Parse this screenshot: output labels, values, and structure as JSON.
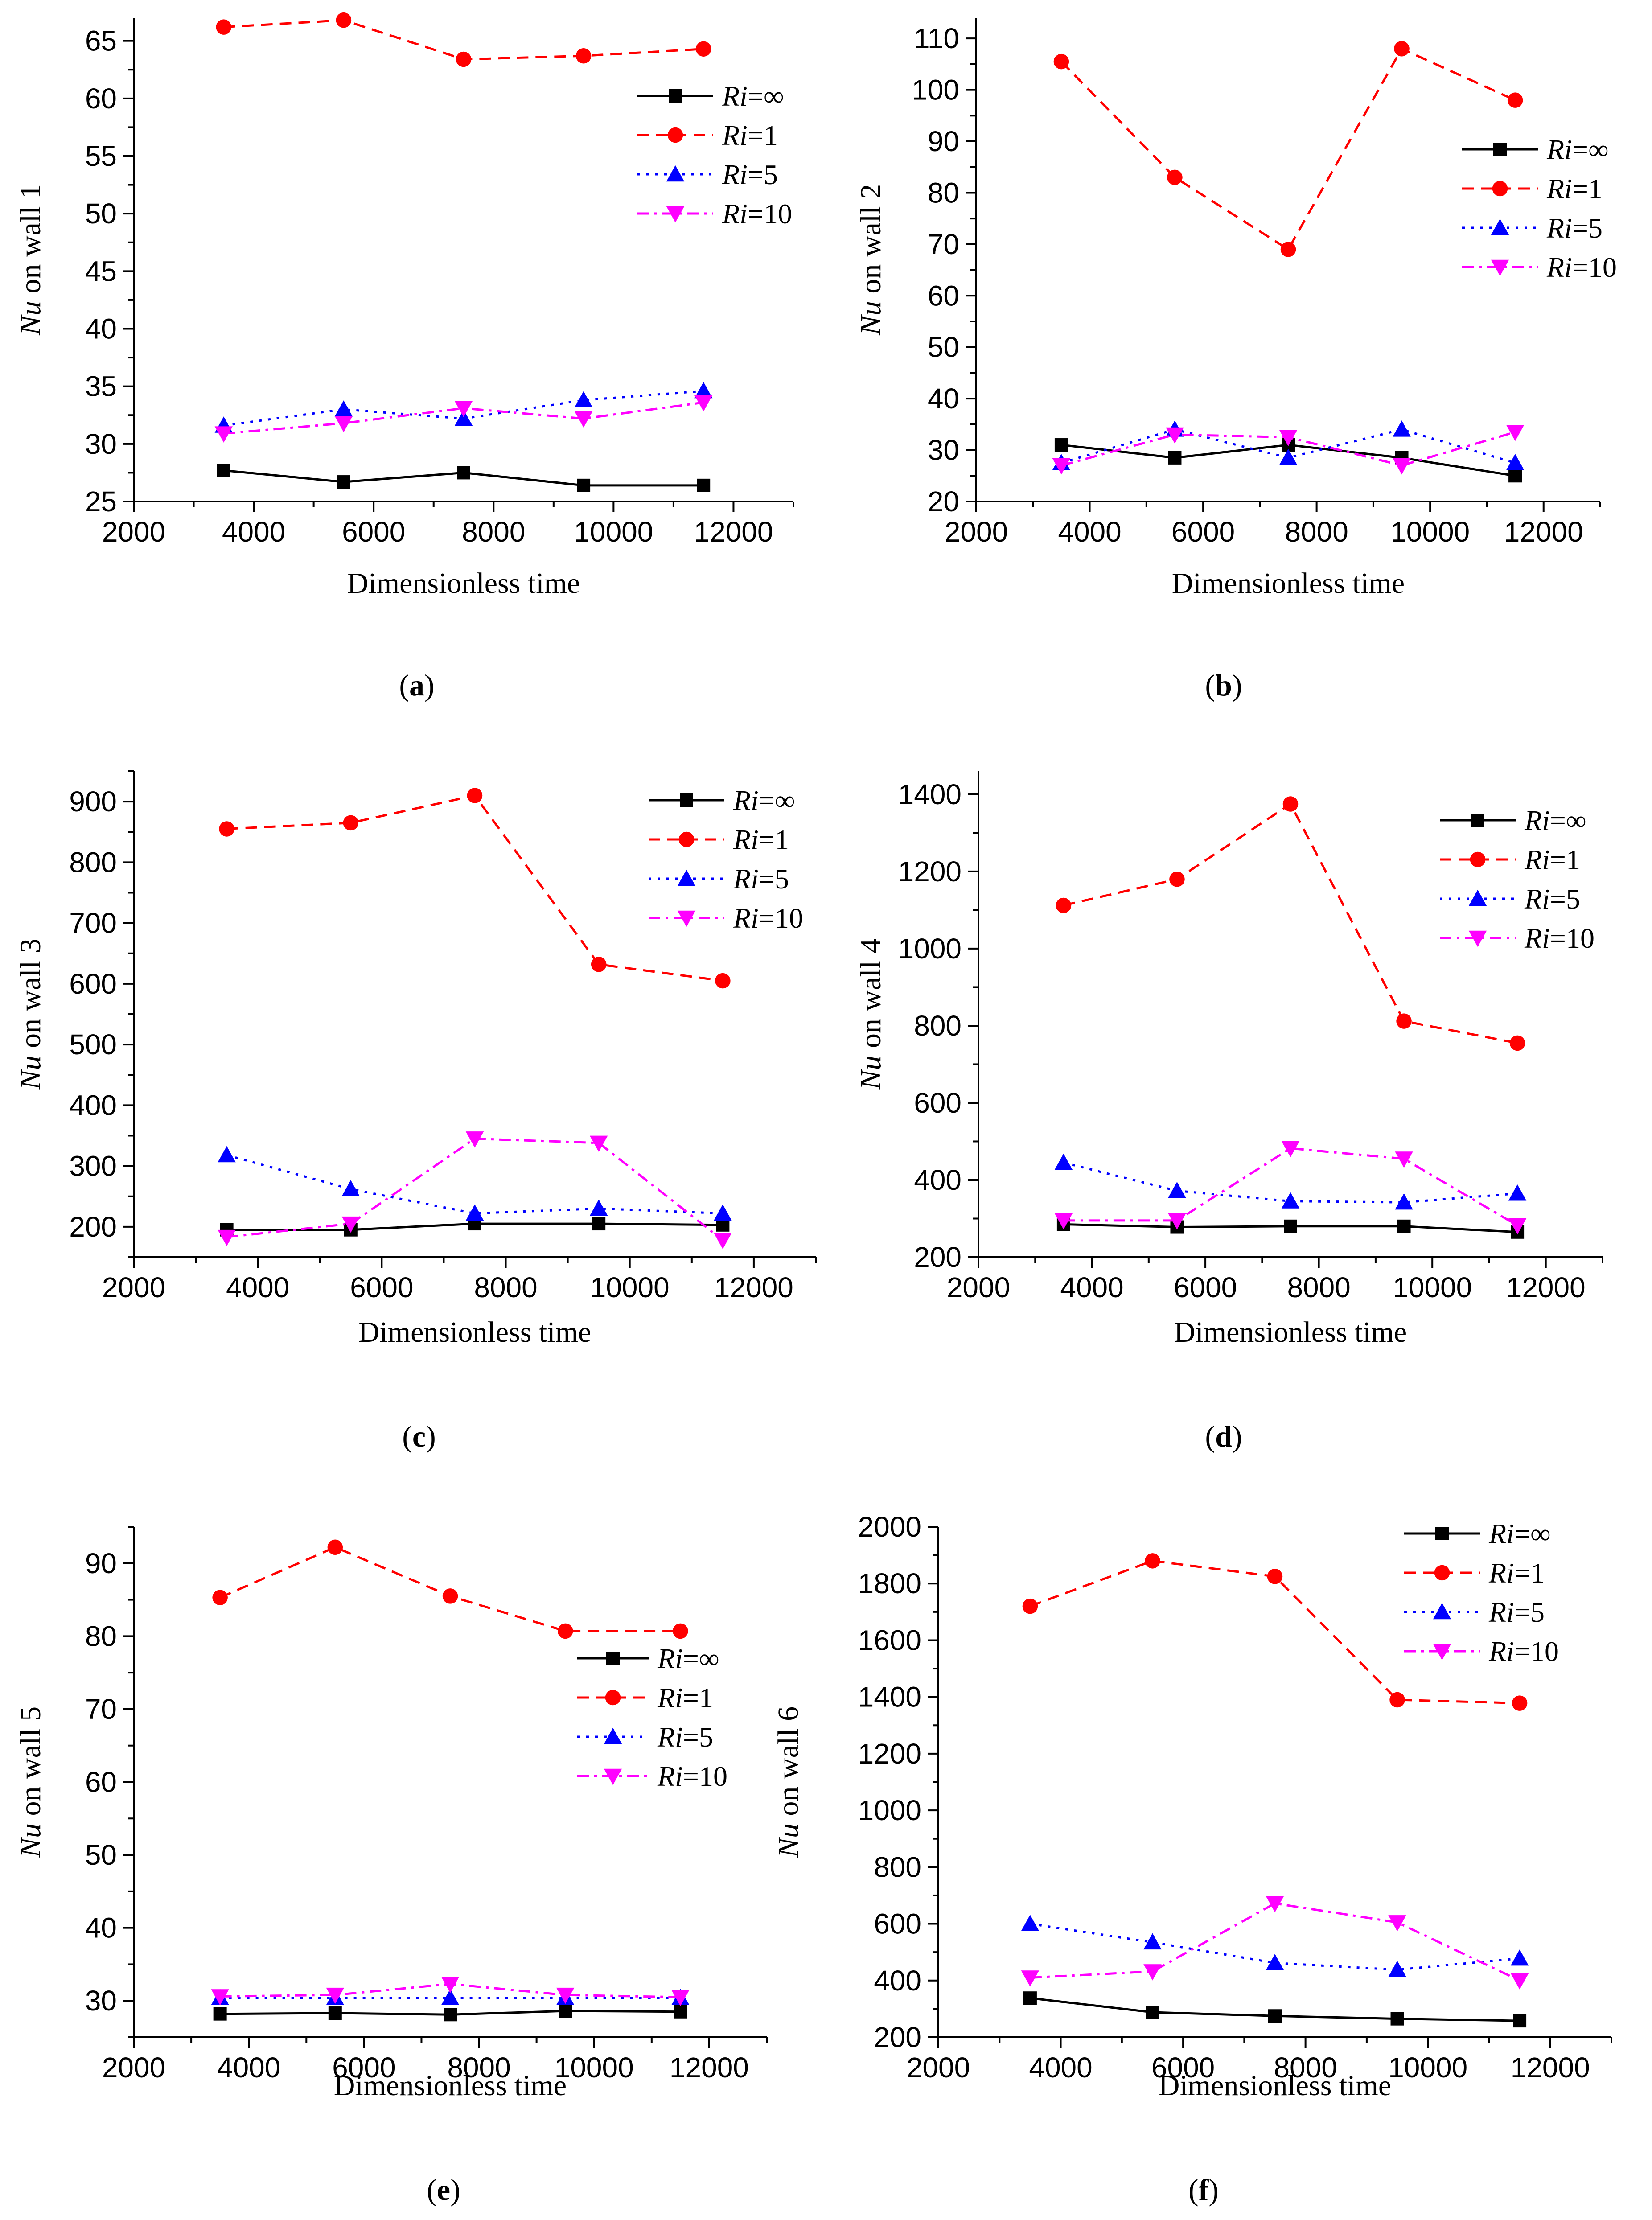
{
  "figure": {
    "series_styles": [
      {
        "name": "Ri=∞",
        "color": "#000000",
        "dash": "solid",
        "marker": "square"
      },
      {
        "name": "Ri=1",
        "color": "#ff0000",
        "dash": "dash",
        "marker": "circle"
      },
      {
        "name": "Ri=5",
        "color": "#0000ff",
        "dash": "dot",
        "marker": "triangle-up"
      },
      {
        "name": "Ri=10",
        "color": "#ff00ff",
        "dash": "dashdot",
        "marker": "triangle-down"
      }
    ]
  },
  "chart_data": [
    {
      "type": "line",
      "panel": "a",
      "xlabel": "Dimensionless time",
      "ylabel_italic": "Nu",
      "ylabel_rest": " on wall 1",
      "xlim": [
        2000,
        13000
      ],
      "ylim": [
        25,
        67
      ],
      "xticks": [
        2000,
        4000,
        6000,
        8000,
        10000,
        12000
      ],
      "yticks": [
        25,
        30,
        35,
        40,
        45,
        50,
        55,
        60,
        65
      ],
      "legend_position": "top-right",
      "x": [
        3500,
        5500,
        7500,
        9500,
        11500
      ],
      "series": [
        {
          "name": "Ri=∞",
          "values": [
            27.7,
            26.7,
            27.5,
            26.4,
            26.4
          ]
        },
        {
          "name": "Ri=1",
          "values": [
            66.2,
            66.8,
            63.4,
            63.7,
            64.3
          ]
        },
        {
          "name": "Ri=5",
          "values": [
            31.6,
            33.0,
            32.2,
            33.8,
            34.6
          ]
        },
        {
          "name": "Ri=10",
          "values": [
            30.9,
            31.8,
            33.1,
            32.2,
            33.6
          ]
        }
      ]
    },
    {
      "type": "line",
      "panel": "b",
      "xlabel": "Dimensionless time",
      "ylabel_italic": "Nu",
      "ylabel_rest": " on wall 2",
      "xlim": [
        2000,
        13000
      ],
      "ylim": [
        20,
        114
      ],
      "xticks": [
        2000,
        4000,
        6000,
        8000,
        10000,
        12000
      ],
      "yticks": [
        20,
        30,
        40,
        50,
        60,
        70,
        80,
        90,
        100,
        110
      ],
      "legend_position": "right",
      "x": [
        3500,
        5500,
        7500,
        9500,
        11500
      ],
      "series": [
        {
          "name": "Ri=∞",
          "values": [
            31,
            28.5,
            31,
            28.5,
            25
          ]
        },
        {
          "name": "Ri=1",
          "values": [
            105.5,
            83,
            69,
            108,
            98
          ]
        },
        {
          "name": "Ri=5",
          "values": [
            27.5,
            34,
            28.5,
            34,
            27.5
          ]
        },
        {
          "name": "Ri=10",
          "values": [
            27,
            33,
            32.5,
            27,
            33.5
          ]
        }
      ]
    },
    {
      "type": "line",
      "panel": "c",
      "xlabel": "Dimensionless time",
      "ylabel_italic": "Nu",
      "ylabel_rest": " on wall 3",
      "xlim": [
        2000,
        13000
      ],
      "ylim": [
        150,
        950
      ],
      "xticks": [
        2000,
        4000,
        6000,
        8000,
        10000,
        12000
      ],
      "yticks": [
        200,
        300,
        400,
        500,
        600,
        700,
        800,
        900
      ],
      "legend_position": "top-right",
      "x": [
        3500,
        5500,
        7500,
        9500,
        11500
      ],
      "series": [
        {
          "name": "Ri=∞",
          "values": [
            195,
            195,
            205,
            205,
            203
          ]
        },
        {
          "name": "Ri=1",
          "values": [
            855,
            865,
            910,
            632,
            605
          ]
        },
        {
          "name": "Ri=5",
          "values": [
            318,
            262,
            222,
            230,
            222
          ]
        },
        {
          "name": "Ri=10",
          "values": [
            183,
            205,
            345,
            338,
            178
          ]
        }
      ]
    },
    {
      "type": "line",
      "panel": "d",
      "xlabel": "Dimensionless time",
      "ylabel_italic": "Nu",
      "ylabel_rest": " on wall 4",
      "xlim": [
        2000,
        13000
      ],
      "ylim": [
        200,
        1460
      ],
      "xticks": [
        2000,
        4000,
        6000,
        8000,
        10000,
        12000
      ],
      "yticks": [
        200,
        400,
        600,
        800,
        1000,
        1200,
        1400
      ],
      "legend_position": "top-right",
      "x": [
        3500,
        5500,
        7500,
        9500,
        11500
      ],
      "series": [
        {
          "name": "Ri=∞",
          "values": [
            285,
            278,
            280,
            280,
            265
          ]
        },
        {
          "name": "Ri=1",
          "values": [
            1112,
            1180,
            1375,
            812,
            755
          ]
        },
        {
          "name": "Ri=5",
          "values": [
            445,
            372,
            345,
            342,
            365
          ]
        },
        {
          "name": "Ri=10",
          "values": [
            295,
            295,
            482,
            455,
            282
          ]
        }
      ]
    },
    {
      "type": "line",
      "panel": "e",
      "xlabel": "Dimensionless time",
      "ylabel_italic": "Nu",
      "ylabel_rest": " on wall 5",
      "xlim": [
        2000,
        13000
      ],
      "ylim": [
        25,
        95
      ],
      "xticks": [
        2000,
        4000,
        6000,
        8000,
        10000,
        12000
      ],
      "yticks": [
        30,
        40,
        50,
        60,
        70,
        80,
        90
      ],
      "legend_position": "right",
      "x": [
        3500,
        5500,
        7500,
        9500,
        11500
      ],
      "series": [
        {
          "name": "Ri=∞",
          "values": [
            28.2,
            28.3,
            28.1,
            28.6,
            28.5
          ]
        },
        {
          "name": "Ri=1",
          "values": [
            85.3,
            92.2,
            85.5,
            80.7,
            80.7
          ]
        },
        {
          "name": "Ri=5",
          "values": [
            30.4,
            30.4,
            30.4,
            30.4,
            30.4
          ]
        },
        {
          "name": "Ri=10",
          "values": [
            30.6,
            30.8,
            32.3,
            30.8,
            30.5
          ]
        }
      ]
    },
    {
      "type": "line",
      "panel": "f",
      "xlabel": "Dimensionless time",
      "ylabel_italic": "Nu",
      "ylabel_rest": " on wall 6",
      "xlim": [
        2000,
        13000
      ],
      "ylim": [
        200,
        2000
      ],
      "xticks": [
        2000,
        4000,
        6000,
        8000,
        10000,
        12000
      ],
      "yticks": [
        200,
        400,
        600,
        800,
        1000,
        1200,
        1400,
        1600,
        1800,
        2000
      ],
      "legend_position": "top-right",
      "x": [
        3500,
        5500,
        7500,
        9500,
        11500
      ],
      "series": [
        {
          "name": "Ri=∞",
          "values": [
            338,
            288,
            275,
            265,
            258
          ]
        },
        {
          "name": "Ri=1",
          "values": [
            1720,
            1880,
            1825,
            1390,
            1378
          ]
        },
        {
          "name": "Ri=5",
          "values": [
            600,
            535,
            462,
            438,
            478
          ]
        },
        {
          "name": "Ri=10",
          "values": [
            410,
            432,
            672,
            605,
            400
          ]
        }
      ]
    }
  ]
}
